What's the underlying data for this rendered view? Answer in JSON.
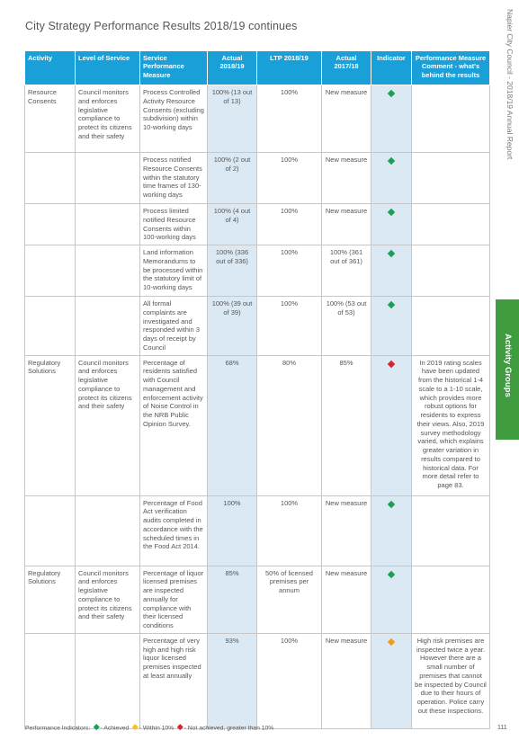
{
  "title": "City Strategy Performance Results 2018/19 continues",
  "side_caption": "Napier City Council - 2018/19 Annual Report",
  "side_tab": "Activity Groups",
  "colors": {
    "achieved": "#1aa050",
    "within10": "#f5c518",
    "not_achieved": "#d9232d",
    "header": "#1aa0d8",
    "amber": "#f59a1b"
  },
  "headers": {
    "activity": "Activity",
    "level_of_service": "Level of Service",
    "measure": "Service Performance Measure",
    "actual_2019": "Actual 2018/19",
    "ltp_2019": "LTP 2018/19",
    "actual_2018": "Actual 2017/18",
    "indicator": "Indicator",
    "comment": "Performance Measure Comment - what's behind the results"
  },
  "groups": [
    {
      "activity": "Resource Consents",
      "level": "Council monitors and enforces legislative compliance to protect its citizens and their safety",
      "rows": [
        {
          "measure": "Process Controlled Activity Resource Consents (excluding subdivision) within 10-working days",
          "actual": "100% (13 out of 13)",
          "ltp": "100%",
          "prior": "New measure",
          "indicator": "achieved",
          "comment": ""
        },
        {
          "measure": "Process notified Resource Consents within the statutory time frames of 130-working days",
          "actual": "100% (2 out of 2)",
          "ltp": "100%",
          "prior": "New measure",
          "indicator": "achieved",
          "comment": ""
        },
        {
          "measure": "Process limited notified Resource Consents within 100-working days",
          "actual": "100% (4 out of 4)",
          "ltp": "100%",
          "prior": "New measure",
          "indicator": "achieved",
          "comment": ""
        },
        {
          "measure": "Land information Memorandums to be processed within the statutory limit of 10-working days",
          "actual": "100% (336 out of 336)",
          "ltp": "100%",
          "prior": "100% (361 out of 361)",
          "indicator": "achieved",
          "comment": ""
        },
        {
          "measure": "All formal complaints are investigated and responded within 3 days of receipt by Council",
          "actual": "100% (39 out of 39)",
          "ltp": "100%",
          "prior": "100% (53 out of 53)",
          "indicator": "achieved",
          "comment": ""
        }
      ]
    },
    {
      "activity": "Regulatory Solutions",
      "level": "Council monitors and enforces legislative compliance to protect its citizens and their safety",
      "rows": [
        {
          "measure": "Percentage of residents satisfied with Council management and enforcement activity of Noise Control in the NRB Public Opinion Survey.",
          "actual": "68%",
          "ltp": "80%",
          "prior": "85%",
          "indicator": "not_achieved",
          "comment": "In 2019 rating scales have been updated from the historical 1-4 scale to a 1-10 scale, which provides more robust options for residents to express their views. Also, 2019 survey methodology varied, which explains greater variation in results compared to historical data. For more detail refer to page 83."
        },
        {
          "measure": "Percentage of Food Act verification audits completed in accordance with the scheduled times in the Food Act 2014.",
          "actual": "100%",
          "ltp": "100%",
          "prior": "New measure",
          "indicator": "achieved",
          "comment": ""
        }
      ]
    },
    {
      "activity": "Regulatory Solutions",
      "level": "Council monitors and enforces legislative compliance to protect its citizens and their safety",
      "rows": [
        {
          "measure": "Percentage of liquor licensed premises are inspected annually for compliance with their licensed conditions",
          "actual": "85%",
          "ltp": "50% of licensed premises per annum",
          "prior": "New measure",
          "indicator": "achieved",
          "comment": ""
        },
        {
          "measure": "Percentage of very high and high risk liquor licensed premises inspected at least annually",
          "actual": "93%",
          "ltp": "100%",
          "prior": "New measure",
          "indicator": "within10",
          "comment": "High risk premises are inspected twice a year. However there are a small number of premises that cannot be inspected by Council due to their hours of operation. Police carry out these inspections."
        }
      ]
    }
  ],
  "footer": {
    "label": "Performance Indicators:",
    "achieved": "- Achieved",
    "within": "- Within 10%",
    "not_achieved": "- Not achieved, greater than 10%"
  },
  "page_number": "111"
}
